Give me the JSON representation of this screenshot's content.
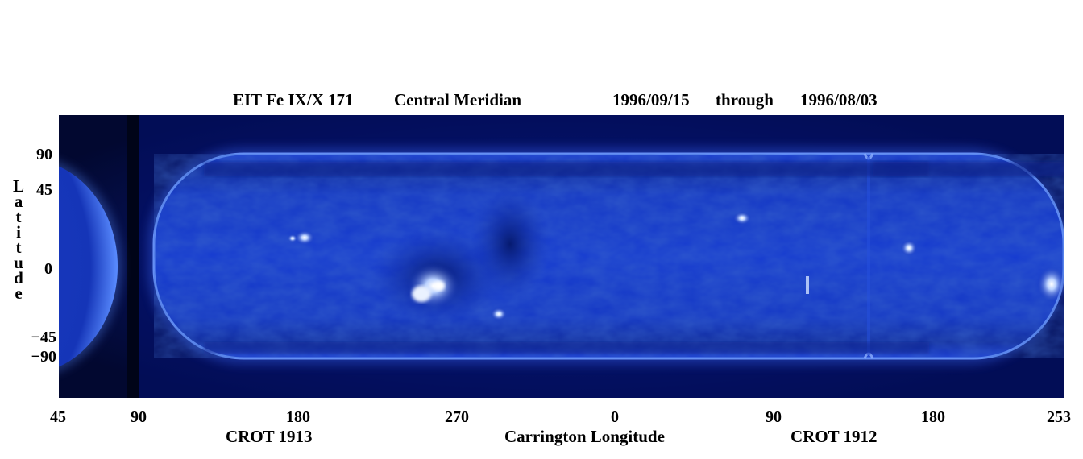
{
  "title": {
    "instrument": "EIT Fe IX/X 171",
    "view": "Central Meridian",
    "start_date": "1996/09/15",
    "through": "through",
    "end_date": "1996/08/03"
  },
  "y_axis": {
    "label": "Latitude",
    "ticks": [
      "90",
      "45",
      "0",
      "−45",
      "−90"
    ]
  },
  "x_axis": {
    "label": "Carrington Longitude",
    "ticks": [
      "45",
      "90",
      "180",
      "270",
      "0",
      "90",
      "180",
      "253"
    ],
    "rotations": [
      "CROT 1913",
      "CROT 1912"
    ]
  },
  "colors": {
    "background": "#000010",
    "disk": "#0d2fc8",
    "limb": "#4a7cff",
    "bright": "#e6f0ff"
  }
}
